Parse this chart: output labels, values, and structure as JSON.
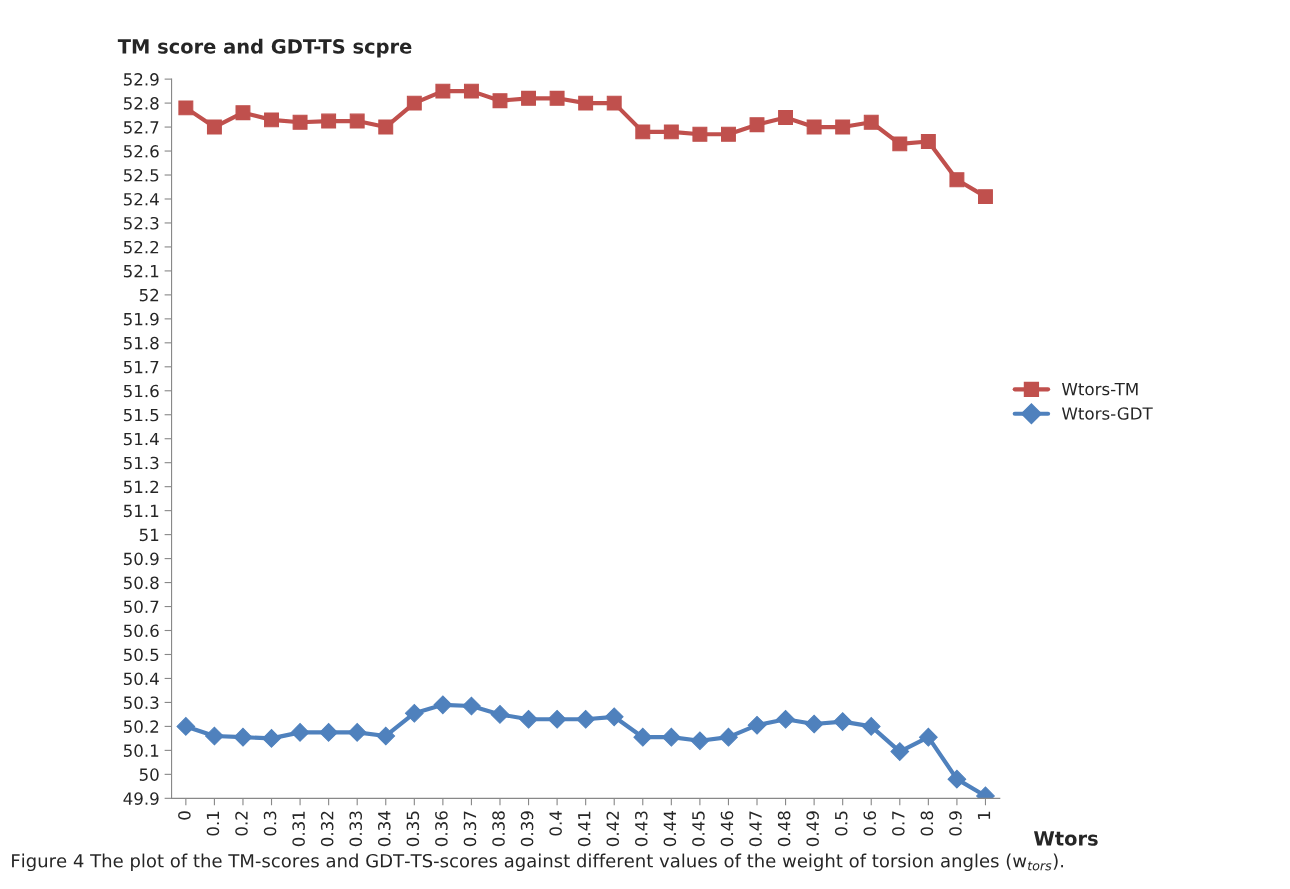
{
  "chart_data": {
    "type": "line",
    "ylabel": "TM score and GDT-TS scpre",
    "xlabel": "Wtors",
    "categories": [
      "0",
      "0.1",
      "0.2",
      "0.3",
      "0.31",
      "0.32",
      "0.33",
      "0.34",
      "0.35",
      "0.36",
      "0.37",
      "0.38",
      "0.39",
      "0.4",
      "0.41",
      "0.42",
      "0.43",
      "0.44",
      "0.45",
      "0.46",
      "0.47",
      "0.48",
      "0.49",
      "0.5",
      "0.6",
      "0.7",
      "0.8",
      "0.9",
      "1"
    ],
    "series": [
      {
        "name": "Wtors-TM",
        "color": "#c0504d",
        "marker": "square",
        "values": [
          52.78,
          52.7,
          52.76,
          52.73,
          52.72,
          52.725,
          52.725,
          52.7,
          52.8,
          52.85,
          52.85,
          52.81,
          52.82,
          52.82,
          52.8,
          52.8,
          52.68,
          52.68,
          52.67,
          52.67,
          52.71,
          52.74,
          52.7,
          52.7,
          52.72,
          52.63,
          52.64,
          52.48,
          52.41
        ]
      },
      {
        "name": "Wtors-GDT",
        "color": "#4f81bd",
        "marker": "diamond",
        "values": [
          50.2,
          50.16,
          50.155,
          50.15,
          50.175,
          50.175,
          50.175,
          50.16,
          50.255,
          50.29,
          50.285,
          50.25,
          50.23,
          50.23,
          50.23,
          50.24,
          50.155,
          50.155,
          50.14,
          50.155,
          50.205,
          50.23,
          50.21,
          50.22,
          50.2,
          50.095,
          50.155,
          49.98,
          49.91
        ]
      }
    ],
    "ylim": [
      49.9,
      52.9
    ],
    "yticks": [
      49.9,
      50,
      50.1,
      50.2,
      50.3,
      50.4,
      50.5,
      50.6,
      50.7,
      50.8,
      50.9,
      51,
      51.1,
      51.2,
      51.3,
      51.4,
      51.5,
      51.6,
      51.7,
      51.8,
      51.9,
      52,
      52.1,
      52.2,
      52.3,
      52.4,
      52.5,
      52.6,
      52.7,
      52.8,
      52.9
    ],
    "grid": false,
    "legend": "right",
    "line_style": "solid",
    "annotations": [
      "Figure 4 The plot of the TM-scores and GDT-TS-scores against different values of the weight of torsion angles (w$_{tors}$)."
    ]
  }
}
